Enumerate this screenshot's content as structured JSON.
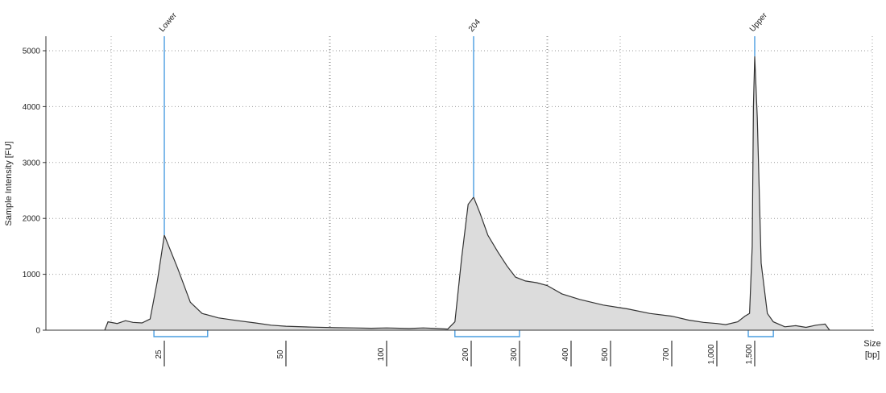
{
  "chart_data": {
    "type": "area",
    "title": "",
    "ylabel": "Sample Intensity [FU]",
    "xlabel": "Size\n[bp]",
    "xlabel_lines": [
      "Size",
      "[bp]"
    ],
    "ylim": [
      0,
      5300
    ],
    "y_ticks": [
      0,
      1000,
      2000,
      3000,
      4000,
      5000
    ],
    "x_ticks": [
      "25",
      "50",
      "100",
      "200",
      "300",
      "400",
      "500",
      "700",
      "1,000",
      "1,500"
    ],
    "grid": true,
    "markers": [
      {
        "label": "Lower",
        "size_bp": 25
      },
      {
        "label": "204",
        "size_bp": 204
      },
      {
        "label": "Upper",
        "size_bp": 1500
      }
    ],
    "peaks": [
      {
        "name": "Lower",
        "size_bp": 25,
        "intensity": 1700
      },
      {
        "name": "204",
        "size_bp": 204,
        "intensity": 2380
      },
      {
        "name": "Upper",
        "size_bp": 1500,
        "intensity": 4900
      }
    ],
    "regions": [
      {
        "from_bp": 22,
        "to_bp": 32
      },
      {
        "from_bp": 175,
        "to_bp": 300
      },
      {
        "from_bp": 1400,
        "to_bp": 1650
      }
    ],
    "series": [
      {
        "points": [
          [
            12,
            0
          ],
          [
            12.5,
            150
          ],
          [
            14,
            120
          ],
          [
            15.5,
            170
          ],
          [
            17,
            140
          ],
          [
            19,
            130
          ],
          [
            21,
            200
          ],
          [
            23,
            900
          ],
          [
            25,
            1700
          ],
          [
            27,
            1100
          ],
          [
            29,
            500
          ],
          [
            31,
            300
          ],
          [
            34,
            220
          ],
          [
            38,
            170
          ],
          [
            42,
            130
          ],
          [
            46,
            90
          ],
          [
            50,
            70
          ],
          [
            60,
            55
          ],
          [
            70,
            45
          ],
          [
            80,
            40
          ],
          [
            90,
            35
          ],
          [
            100,
            40
          ],
          [
            120,
            30
          ],
          [
            135,
            40
          ],
          [
            150,
            30
          ],
          [
            165,
            20
          ],
          [
            175,
            150
          ],
          [
            185,
            1300
          ],
          [
            195,
            2250
          ],
          [
            204,
            2380
          ],
          [
            215,
            2100
          ],
          [
            230,
            1700
          ],
          [
            250,
            1400
          ],
          [
            270,
            1150
          ],
          [
            290,
            950
          ],
          [
            310,
            880
          ],
          [
            330,
            850
          ],
          [
            350,
            800
          ],
          [
            380,
            650
          ],
          [
            420,
            550
          ],
          [
            480,
            450
          ],
          [
            550,
            380
          ],
          [
            620,
            300
          ],
          [
            700,
            250
          ],
          [
            800,
            180
          ],
          [
            900,
            140
          ],
          [
            1000,
            120
          ],
          [
            1100,
            100
          ],
          [
            1250,
            150
          ],
          [
            1350,
            250
          ],
          [
            1420,
            300
          ],
          [
            1460,
            1500
          ],
          [
            1480,
            4000
          ],
          [
            1500,
            4900
          ],
          [
            1520,
            3800
          ],
          [
            1550,
            1200
          ],
          [
            1600,
            300
          ],
          [
            1650,
            150
          ],
          [
            1750,
            60
          ],
          [
            1850,
            80
          ],
          [
            1950,
            50
          ],
          [
            2050,
            90
          ],
          [
            2150,
            110
          ],
          [
            2200,
            0
          ]
        ]
      }
    ]
  }
}
